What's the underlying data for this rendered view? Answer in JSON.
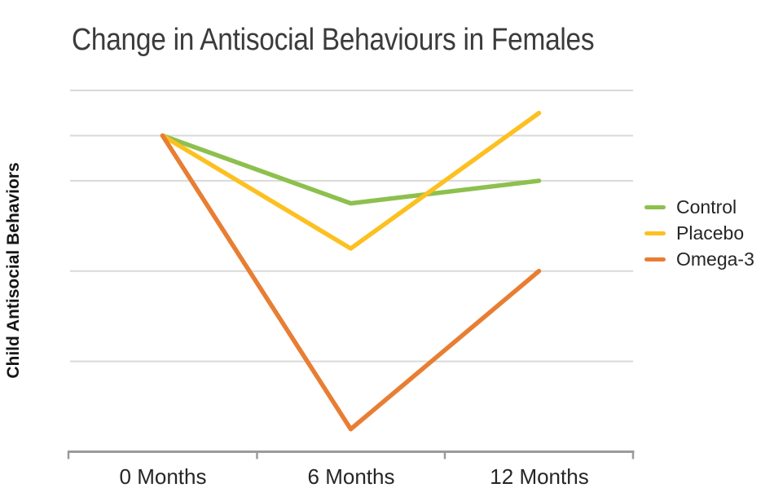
{
  "chart_data": {
    "type": "line",
    "title": "Change in Antisocial Behaviours in Females",
    "ylabel": "Child Antisocial Behaviors",
    "xlabel": "",
    "categories": [
      "0 Months",
      "6 Months",
      "12 Months"
    ],
    "series": [
      {
        "name": "Control",
        "color": "#8dc04e",
        "values": [
          7,
          5.5,
          6
        ]
      },
      {
        "name": "Placebo",
        "color": "#fcc020",
        "values": [
          7,
          4.5,
          7.5
        ]
      },
      {
        "name": "Omega-3",
        "color": "#e87e33",
        "values": [
          7,
          0.5,
          4
        ]
      }
    ],
    "ylim": [
      0,
      8.2
    ],
    "gridline_values": [
      2,
      4,
      6,
      7,
      8
    ],
    "grid": true,
    "legend_position": "right",
    "y_tick_labels_visible": false
  },
  "colors": {
    "background": "#ffffff",
    "title_text": "#3b3b3b",
    "axis_label_text": "#262626",
    "legend_text": "#262626",
    "gridline": "#d9d9d9",
    "axis_line": "#9b9b9b"
  }
}
